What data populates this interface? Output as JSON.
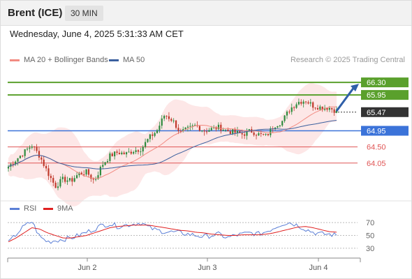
{
  "header": {
    "title": "Brent (ICE)",
    "timeframe": "30 MIN"
  },
  "datetime": "Wednesday, June 4, 2025 5:31:33 AM CET",
  "legend": {
    "ma20": "MA 20 + Bollinger Bands",
    "ma50": "MA 50",
    "credit": "Research © 2025 Trading Central",
    "rsi": "RSI",
    "rsi_ma": "9MA"
  },
  "colors": {
    "ma20": "#f28b82",
    "ma50": "#3a5f9e",
    "bollinger_fill": "#fde3e3",
    "up_candle": "#2e8b3e",
    "down_candle": "#c0392b",
    "resistance": "#5aa02c",
    "support": "#3b73d9",
    "support_red": "#e05555",
    "current": "#333333",
    "arrow": "#2f5fa8",
    "rsi": "#5b7fd6",
    "rsi_ma": "#e02020"
  },
  "chart_data": {
    "type": "candlestick",
    "x_ticks": [
      "Jun 2",
      "Jun 3",
      "Jun 4"
    ],
    "price_ylim": [
      63.15,
      66.75
    ],
    "levels": [
      {
        "label": "66.30",
        "value": 66.3,
        "kind": "resistance"
      },
      {
        "label": "65.95",
        "value": 65.95,
        "kind": "resistance"
      },
      {
        "label": "65.47",
        "value": 65.47,
        "kind": "current"
      },
      {
        "label": "64.95",
        "value": 64.95,
        "kind": "support"
      },
      {
        "label": "64.50",
        "value": 64.5,
        "kind": "support-red"
      },
      {
        "label": "64.05",
        "value": 64.05,
        "kind": "support-red"
      }
    ],
    "close_path": [
      63.95,
      64.15,
      64.35,
      64.55,
      64.25,
      63.8,
      63.4,
      63.6,
      63.55,
      63.75,
      63.8,
      63.55,
      64.0,
      64.25,
      64.35,
      64.3,
      64.4,
      64.45,
      64.75,
      64.95,
      65.4,
      65.25,
      64.9,
      65.0,
      65.1,
      64.95,
      65.0,
      65.05,
      64.95,
      64.9,
      64.85,
      64.95,
      64.85,
      64.8,
      65.1,
      65.2,
      65.55,
      65.75,
      65.8,
      65.65,
      65.6,
      65.6,
      65.5
    ],
    "rsi_ticks": [
      70,
      50,
      30
    ],
    "rsi_ylim": [
      20,
      80
    ],
    "rsi_path": [
      38,
      52,
      64,
      72,
      48,
      40,
      42,
      44,
      46,
      50,
      55,
      60,
      66,
      68,
      64,
      66,
      68,
      70,
      62,
      58,
      56,
      55,
      54,
      52,
      50,
      48,
      50,
      52,
      46,
      50,
      52,
      54,
      52,
      56,
      62,
      68,
      70,
      66,
      60,
      55,
      52,
      52,
      50
    ],
    "rsi_ma_path": [
      40,
      46,
      54,
      62,
      60,
      54,
      50,
      46,
      46,
      48,
      50,
      54,
      58,
      62,
      64,
      65,
      66,
      66,
      66,
      64,
      62,
      60,
      58,
      57,
      55,
      54,
      52,
      51,
      50,
      50,
      51,
      51,
      51,
      52,
      54,
      57,
      60,
      63,
      64,
      62,
      59,
      56,
      55
    ]
  }
}
